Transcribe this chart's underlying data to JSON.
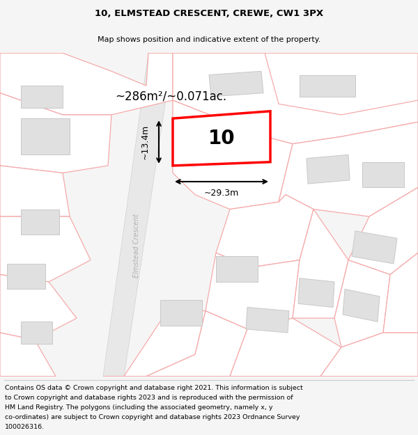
{
  "title_line1": "10, ELMSTEAD CRESCENT, CREWE, CW1 3PX",
  "title_line2": "Map shows position and indicative extent of the property.",
  "footer_lines": [
    "Contains OS data © Crown copyright and database right 2021. This information is subject",
    "to Crown copyright and database rights 2023 and is reproduced with the permission of",
    "HM Land Registry. The polygons (including the associated geometry, namely x, y",
    "co-ordinates) are subject to Crown copyright and database rights 2023 Ordnance Survey",
    "100026316."
  ],
  "area_text": "~286m²/~0.071ac.",
  "number_label": "10",
  "width_label": "~29.3m",
  "height_label": "~13.4m",
  "road_label": "Elmstead Crescent",
  "bg_color": "#f5f5f5",
  "map_bg": "#ffffff",
  "plot_fill": "#ffffff",
  "plot_edge": "#ff0000",
  "road_fill": "#e8e8e8",
  "road_edge": "#d0d0d0",
  "building_fill": "#e0e0e0",
  "building_edge": "#c8c8c8",
  "pink_edge": "#f5aaaa",
  "pink_fill": "#ffffff",
  "title_fontsize": 9.5,
  "subtitle_fontsize": 8.0,
  "footer_fontsize": 6.8,
  "area_fontsize": 12,
  "number_fontsize": 20,
  "dim_fontsize": 9
}
